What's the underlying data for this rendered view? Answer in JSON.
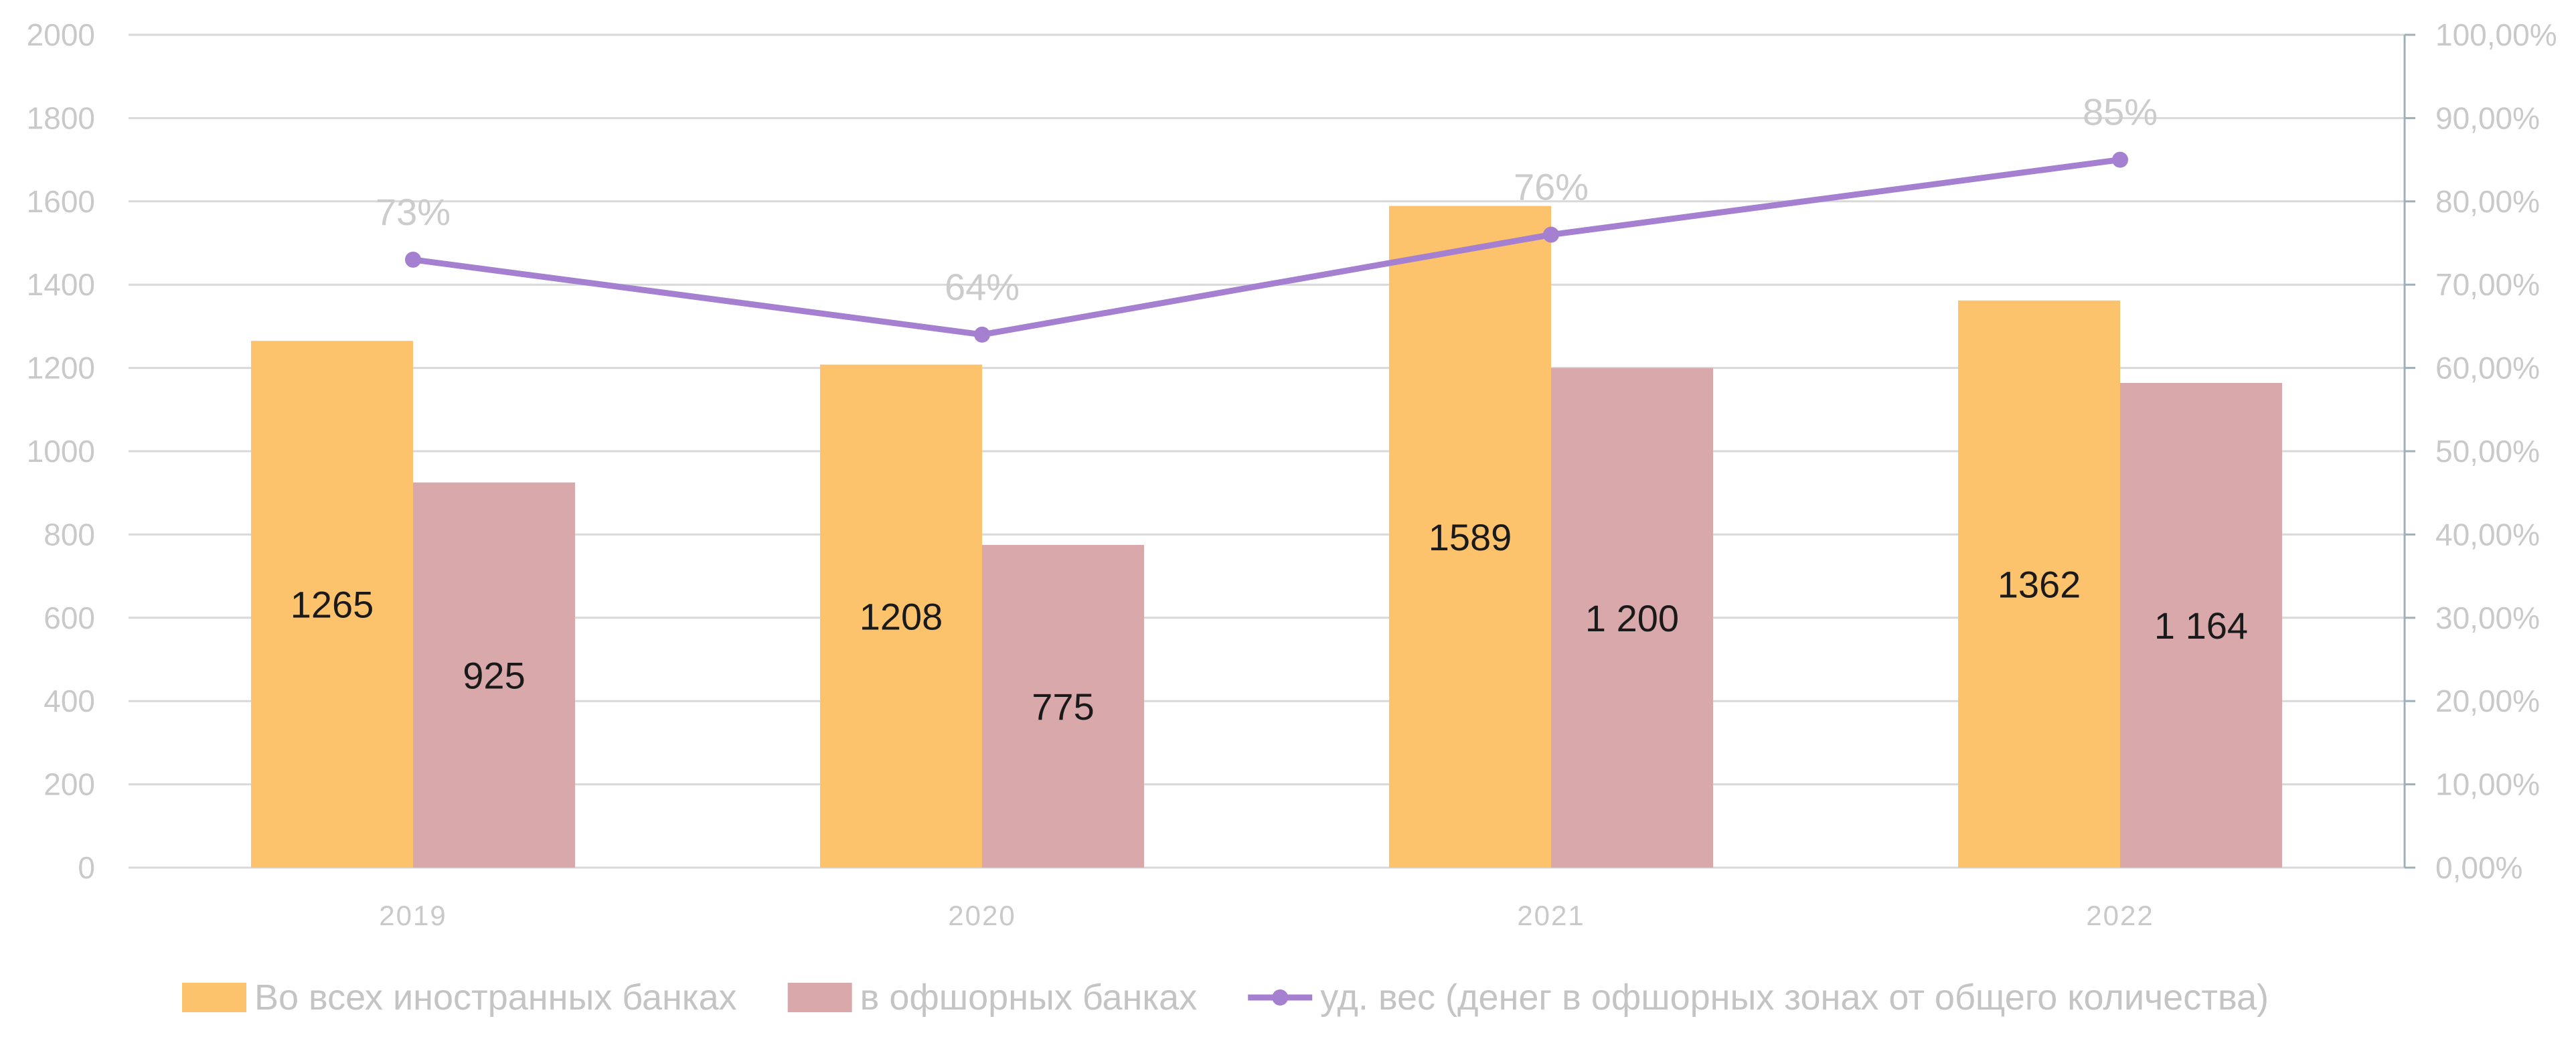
{
  "chart_data": {
    "type": "bar",
    "categories": [
      "2019",
      "2020",
      "2021",
      "2022"
    ],
    "series": [
      {
        "name": "Во всех иностранных банках",
        "type": "bar",
        "axis": "left",
        "color": "#FDC26C",
        "values": [
          1265,
          1208,
          1589,
          1362
        ],
        "labels": [
          "1265",
          "1208",
          "1589",
          "1362"
        ]
      },
      {
        "name": "в офшорных банках",
        "type": "bar",
        "axis": "left",
        "color": "#D8A8AA",
        "values": [
          925,
          775,
          1200,
          1164
        ],
        "labels": [
          "925",
          "775",
          "1 200",
          "1 164"
        ]
      },
      {
        "name": "уд. вес (денег в офшорных зонах от общего количества)",
        "type": "line",
        "axis": "right",
        "color": "#A57FD0",
        "values": [
          73,
          64,
          76,
          85
        ],
        "labels": [
          "73%",
          "64%",
          "76%",
          "85%"
        ]
      }
    ],
    "y_left": {
      "range": [
        0,
        2000
      ],
      "ticks": [
        "0",
        "200",
        "400",
        "600",
        "800",
        "1000",
        "1200",
        "1400",
        "1600",
        "1800",
        "2000"
      ]
    },
    "y_right": {
      "range": [
        0,
        100
      ],
      "ticks": [
        "0,00%",
        "10,00%",
        "20,00%",
        "30,00%",
        "40,00%",
        "50,00%",
        "60,00%",
        "70,00%",
        "80,00%",
        "90,00%",
        "100,00%"
      ]
    },
    "grid": true,
    "legend_position": "bottom"
  }
}
